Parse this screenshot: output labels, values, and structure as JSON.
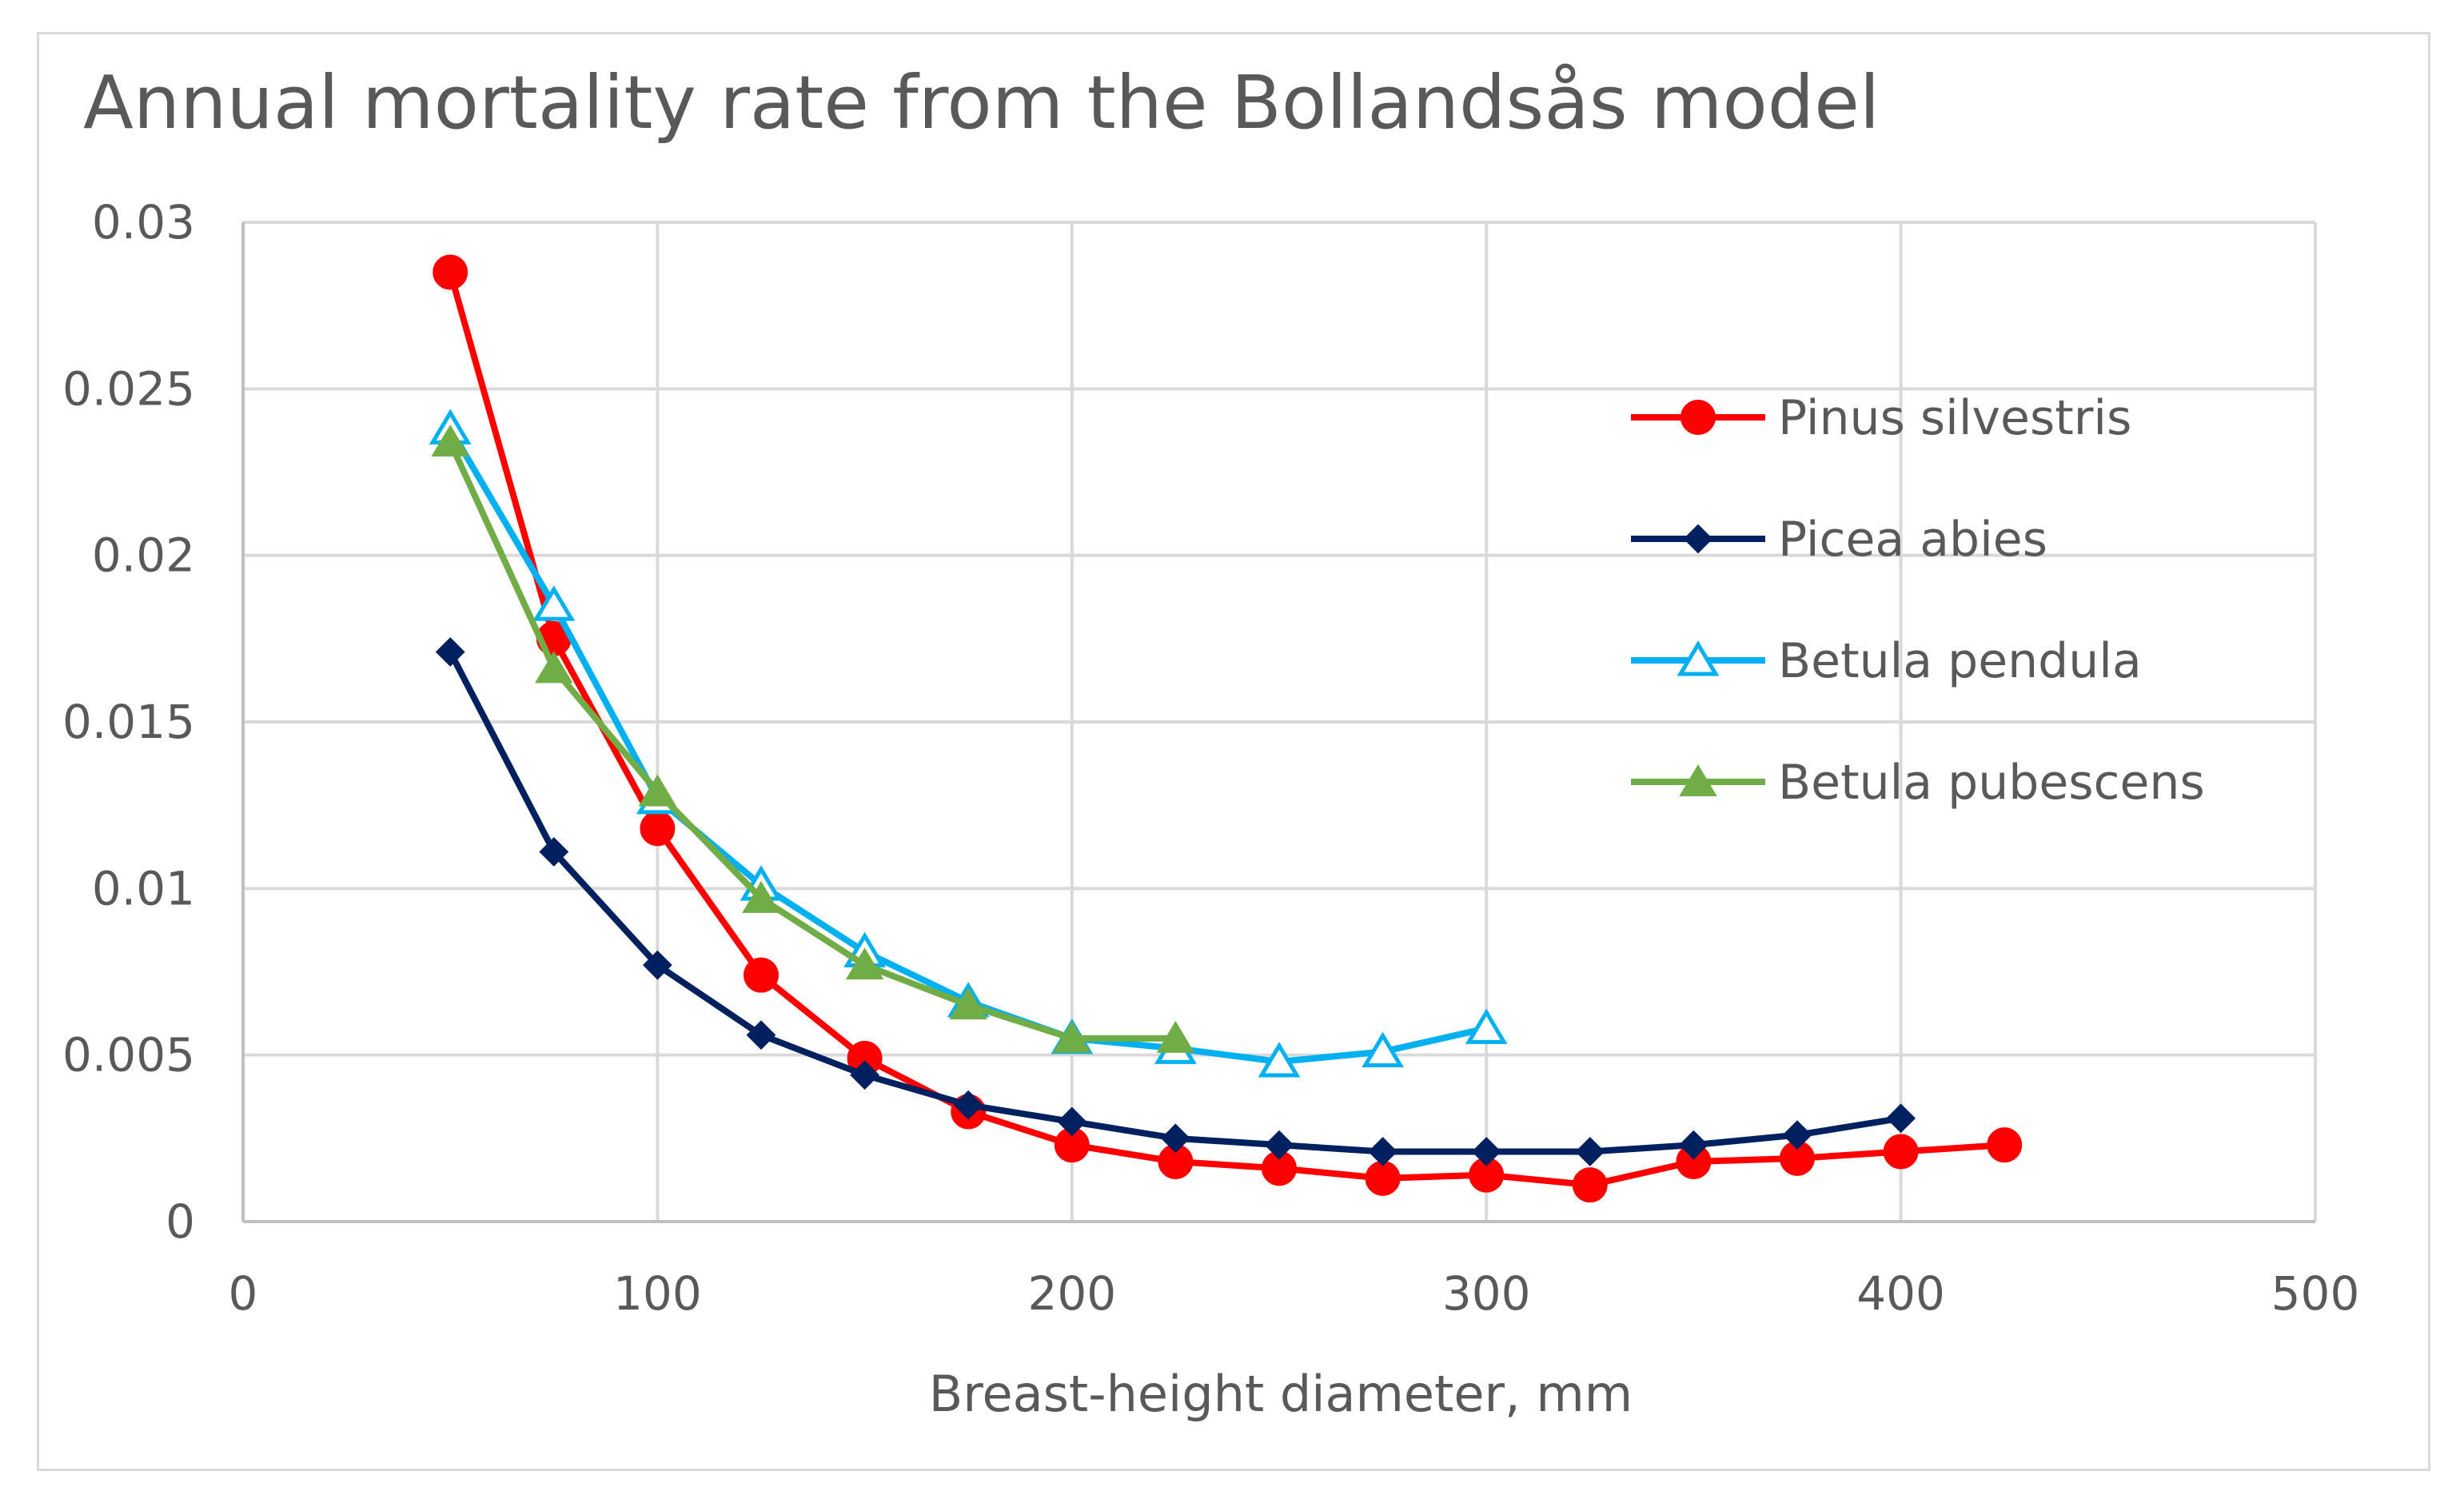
{
  "chart_data": {
    "type": "line",
    "title": "Annual mortality rate from the Bollandsås model",
    "xlabel": "Breast-height diameter, mm",
    "ylabel": "",
    "xlim": [
      0,
      500
    ],
    "ylim": [
      0,
      0.03
    ],
    "x_ticks": [
      0,
      100,
      200,
      300,
      400,
      500
    ],
    "y_ticks": [
      0,
      0.005,
      0.01,
      0.015,
      0.02,
      0.025,
      0.03
    ],
    "x_tick_labels": [
      "0",
      "100",
      "200",
      "300",
      "400",
      "500"
    ],
    "y_tick_labels": [
      "0",
      "0.005",
      "0.01",
      "0.015",
      "0.02",
      "0.025",
      "0.03"
    ],
    "grid": true,
    "legend_position": "right",
    "series": [
      {
        "name": "Pinus silvestris",
        "color": "#ff0000",
        "marker": "circle",
        "x": [
          50,
          75,
          100,
          125,
          150,
          175,
          200,
          225,
          250,
          275,
          300,
          325,
          350,
          375,
          400,
          425
        ],
        "values": [
          0.0285,
          0.0175,
          0.0118,
          0.0074,
          0.0049,
          0.0033,
          0.0023,
          0.0018,
          0.0016,
          0.0013,
          0.0014,
          0.0011,
          0.0018,
          0.0019,
          0.0021,
          0.0023
        ]
      },
      {
        "name": "Picea abies",
        "color": "#002060",
        "marker": "diamond",
        "x": [
          50,
          75,
          100,
          125,
          150,
          175,
          200,
          225,
          250,
          275,
          300,
          325,
          350,
          375,
          400
        ],
        "values": [
          0.0171,
          0.0111,
          0.0077,
          0.0056,
          0.0044,
          0.0035,
          0.003,
          0.0025,
          0.0023,
          0.0021,
          0.0021,
          0.0021,
          0.0023,
          0.0026,
          0.0031
        ]
      },
      {
        "name": "Betula pendula",
        "color": "#00b0f0",
        "marker": "triangle-open",
        "x": [
          50,
          75,
          100,
          125,
          150,
          175,
          200,
          225,
          250,
          275,
          300
        ],
        "values": [
          0.0238,
          0.0185,
          0.0127,
          0.0101,
          0.0081,
          0.0066,
          0.0055,
          0.0052,
          0.0048,
          0.0051,
          0.0058
        ]
      },
      {
        "name": "Betula pubescens",
        "color": "#70ad47",
        "marker": "triangle",
        "x": [
          50,
          75,
          100,
          125,
          150,
          175,
          200,
          225
        ],
        "values": [
          0.0234,
          0.0166,
          0.0129,
          0.0097,
          0.0077,
          0.0065,
          0.0055,
          0.0055
        ]
      }
    ]
  }
}
